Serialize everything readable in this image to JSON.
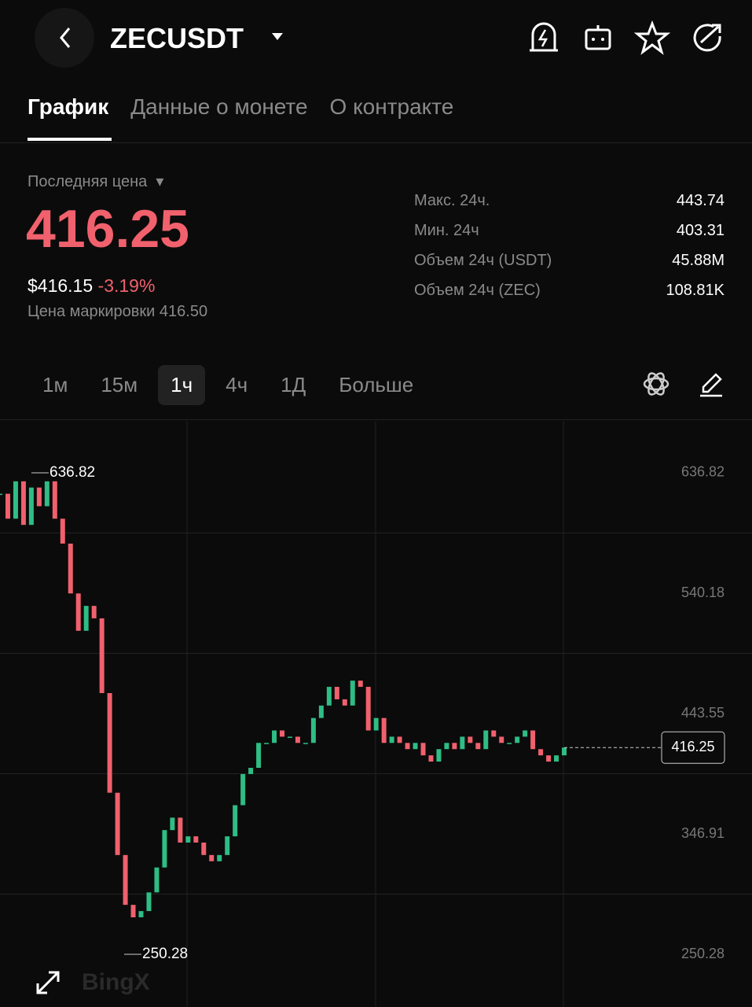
{
  "header": {
    "symbol": "ZECUSDT"
  },
  "tabs": [
    "График",
    "Данные о монете",
    "О контракте"
  ],
  "price": {
    "label": "Последняя цена",
    "last": "416.25",
    "usd": "$416.15",
    "change": "-3.19%",
    "mark": "Цена маркировки 416.50"
  },
  "stats": [
    {
      "label": "Макс. 24ч.",
      "value": "443.74"
    },
    {
      "label": "Мин. 24ч",
      "value": "403.31"
    },
    {
      "label": "Объем 24ч (USDT)",
      "value": "45.88M"
    },
    {
      "label": "Объем 24ч (ZEC)",
      "value": "108.81K"
    }
  ],
  "intervals": [
    "1м",
    "15м",
    "1ч",
    "4ч",
    "1Д",
    "Больше"
  ],
  "watermark": "BingX",
  "chart_data": {
    "type": "candlestick",
    "closes": [
      620,
      600,
      630,
      595,
      625,
      610,
      630,
      600,
      580,
      540,
      510,
      530,
      520,
      460,
      380,
      330,
      290,
      280,
      285,
      300,
      320,
      350,
      360,
      340,
      345,
      340,
      330,
      325,
      330,
      345,
      370,
      395,
      400,
      420,
      420,
      430,
      425,
      425,
      420,
      420,
      440,
      450,
      465,
      455,
      450,
      470,
      465,
      430,
      440,
      420,
      425,
      420,
      415,
      420,
      410,
      405,
      415,
      420,
      415,
      425,
      420,
      415,
      430,
      425,
      420,
      420,
      425,
      430,
      415,
      410,
      405,
      410,
      416.25
    ],
    "ylim": [
      208,
      678.5
    ],
    "yticks": [
      636.82,
      540.18,
      443.55,
      346.91,
      250.28
    ],
    "last_price": 416.25,
    "high_label": 636.82,
    "low_label": 250.28,
    "up_color": "#2ebd85",
    "down_color": "#f0616d"
  }
}
